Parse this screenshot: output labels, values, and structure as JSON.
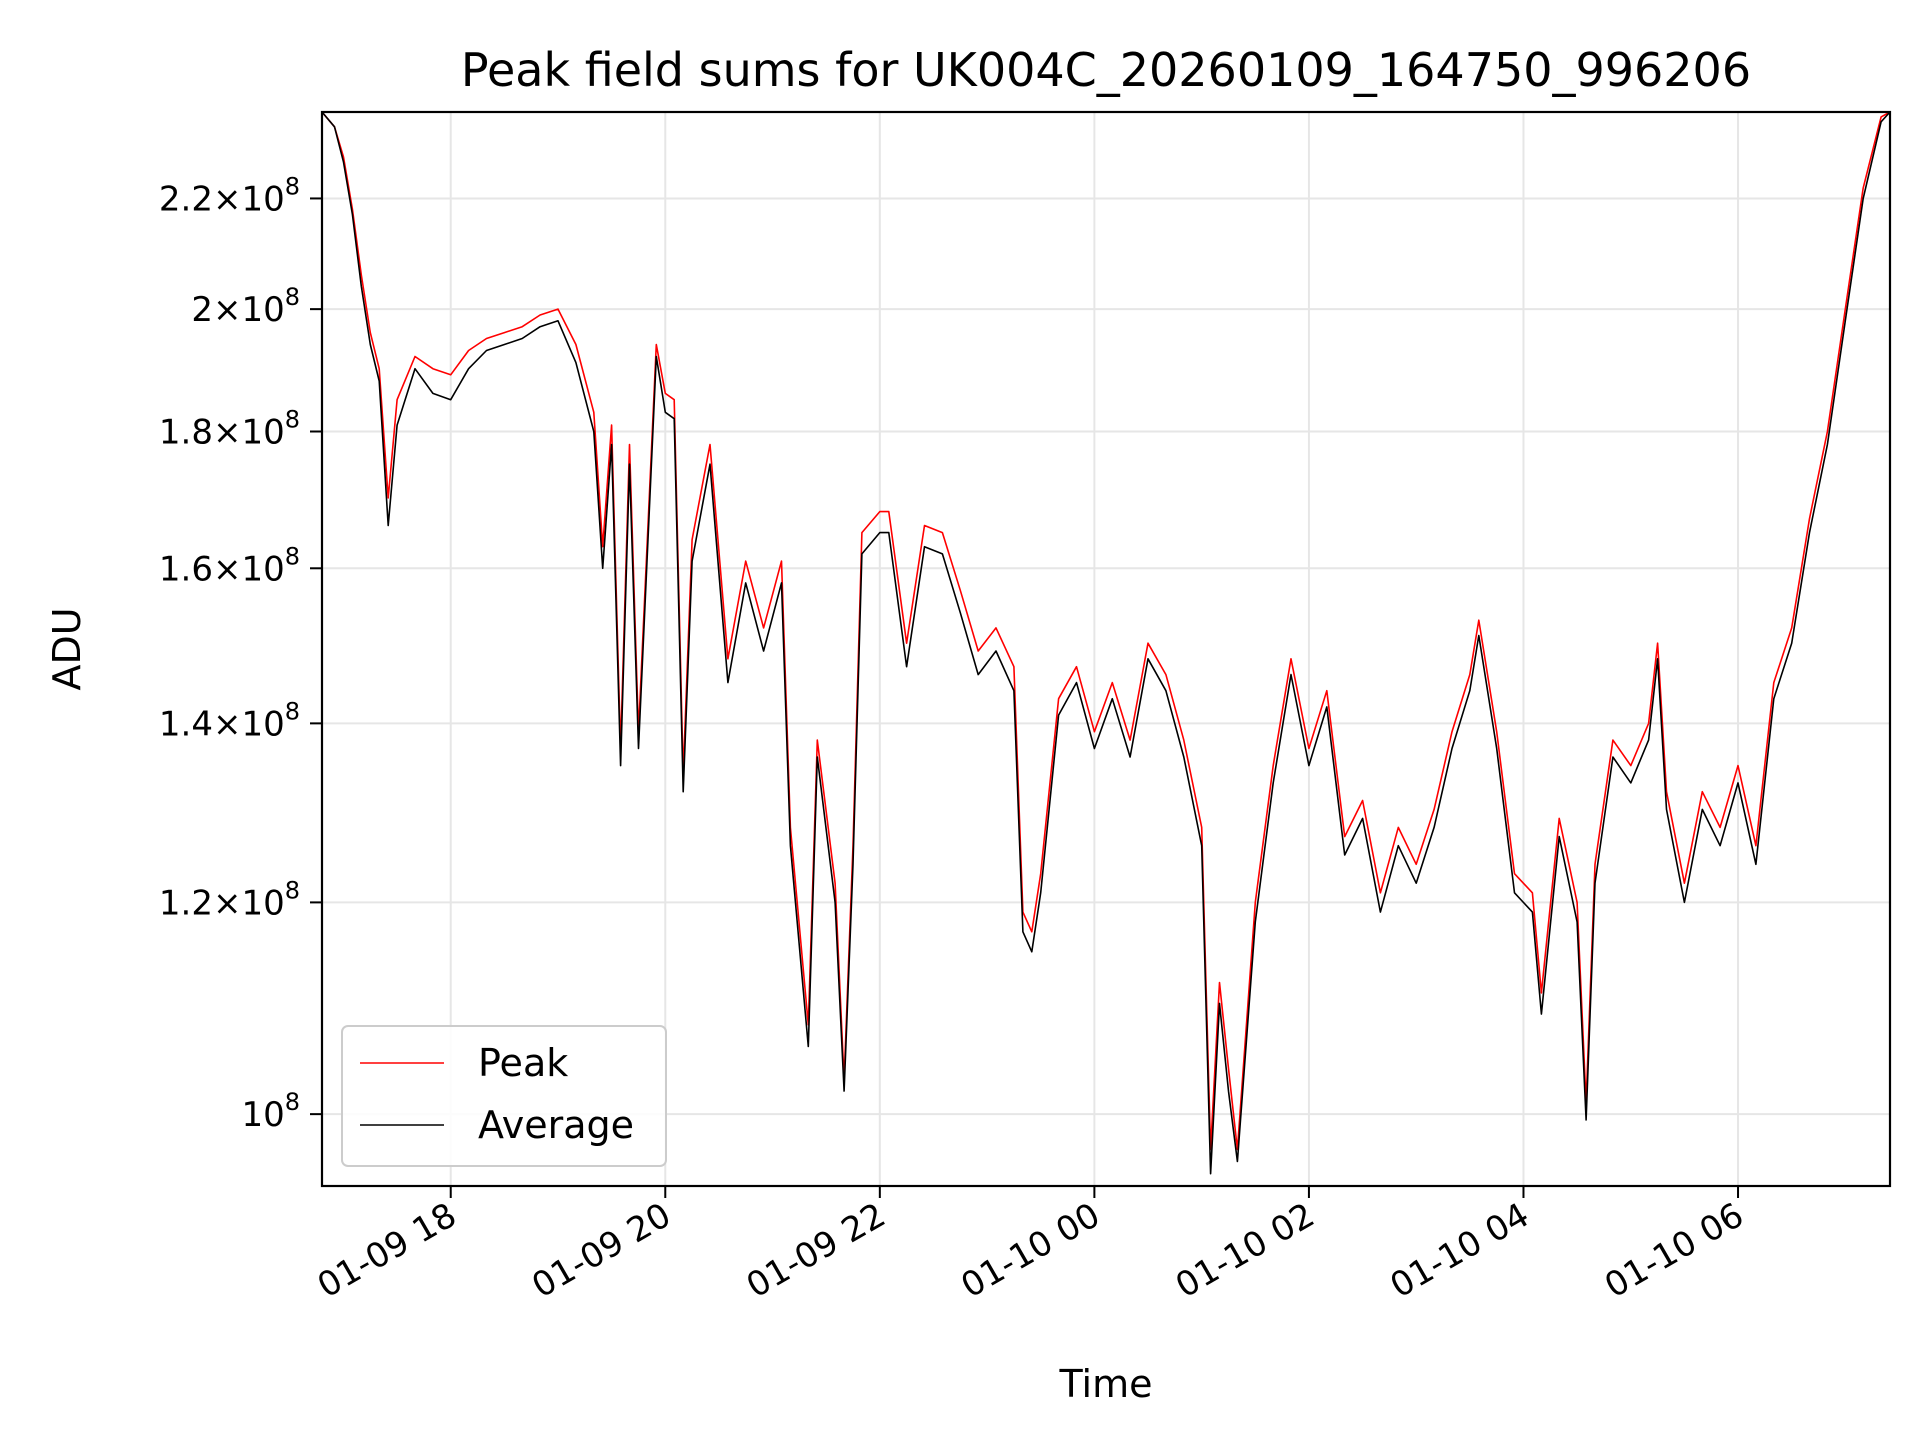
{
  "chart_data": {
    "type": "line",
    "title": "Peak field sums for UK004C_20260109_164750_996206",
    "xlabel": "Time",
    "ylabel": "ADU",
    "yscale": "log",
    "grid": true,
    "legend_position": "lower-left",
    "xlim": [
      "2026-01-09 16:48",
      "2026-01-10 07:25"
    ],
    "ylim": [
      94000000,
      237000000
    ],
    "x_ticks": [
      {
        "value": "2026-01-09 18:00",
        "label": "01-09 18"
      },
      {
        "value": "2026-01-09 20:00",
        "label": "01-09 20"
      },
      {
        "value": "2026-01-09 22:00",
        "label": "01-09 22"
      },
      {
        "value": "2026-01-10 00:00",
        "label": "01-10 00"
      },
      {
        "value": "2026-01-10 02:00",
        "label": "01-10 02"
      },
      {
        "value": "2026-01-10 04:00",
        "label": "01-10 04"
      },
      {
        "value": "2026-01-10 06:00",
        "label": "01-10 06"
      }
    ],
    "y_ticks": [
      {
        "value": 100000000,
        "mantissa": "",
        "exponent": "8"
      },
      {
        "value": 120000000,
        "mantissa": "1.2",
        "exponent": "8"
      },
      {
        "value": 140000000,
        "mantissa": "1.4",
        "exponent": "8"
      },
      {
        "value": 160000000,
        "mantissa": "1.6",
        "exponent": "8"
      },
      {
        "value": 180000000,
        "mantissa": "1.8",
        "exponent": "8"
      },
      {
        "value": 200000000,
        "mantissa": "2",
        "exponent": "8"
      },
      {
        "value": 220000000,
        "mantissa": "2.2",
        "exponent": "8"
      }
    ],
    "series": [
      {
        "name": "Peak",
        "color": "#ff0000",
        "points": [
          [
            "2026-01-09 16:48",
            237000000
          ],
          [
            "2026-01-09 16:55",
            234000000
          ],
          [
            "2026-01-09 17:00",
            228000000
          ],
          [
            "2026-01-09 17:05",
            218000000
          ],
          [
            "2026-01-09 17:10",
            206000000
          ],
          [
            "2026-01-09 17:15",
            196000000
          ],
          [
            "2026-01-09 17:20",
            190000000
          ],
          [
            "2026-01-09 17:25",
            170000000
          ],
          [
            "2026-01-09 17:30",
            185000000
          ],
          [
            "2026-01-09 17:40",
            192000000
          ],
          [
            "2026-01-09 17:50",
            190000000
          ],
          [
            "2026-01-09 18:00",
            189000000
          ],
          [
            "2026-01-09 18:10",
            193000000
          ],
          [
            "2026-01-09 18:20",
            195000000
          ],
          [
            "2026-01-09 18:30",
            196000000
          ],
          [
            "2026-01-09 18:40",
            197000000
          ],
          [
            "2026-01-09 18:50",
            199000000
          ],
          [
            "2026-01-09 19:00",
            200000000
          ],
          [
            "2026-01-09 19:10",
            194000000
          ],
          [
            "2026-01-09 19:20",
            183000000
          ],
          [
            "2026-01-09 19:25",
            163000000
          ],
          [
            "2026-01-09 19:30",
            181000000
          ],
          [
            "2026-01-09 19:35",
            137000000
          ],
          [
            "2026-01-09 19:40",
            178000000
          ],
          [
            "2026-01-09 19:45",
            139000000
          ],
          [
            "2026-01-09 19:55",
            194000000
          ],
          [
            "2026-01-09 20:00",
            186000000
          ],
          [
            "2026-01-09 20:05",
            185000000
          ],
          [
            "2026-01-09 20:10",
            134000000
          ],
          [
            "2026-01-09 20:15",
            164000000
          ],
          [
            "2026-01-09 20:25",
            178000000
          ],
          [
            "2026-01-09 20:35",
            148000000
          ],
          [
            "2026-01-09 20:45",
            161000000
          ],
          [
            "2026-01-09 20:55",
            152000000
          ],
          [
            "2026-01-09 21:05",
            161000000
          ],
          [
            "2026-01-09 21:10",
            128000000
          ],
          [
            "2026-01-09 21:20",
            108000000
          ],
          [
            "2026-01-09 21:25",
            138000000
          ],
          [
            "2026-01-09 21:35",
            122000000
          ],
          [
            "2026-01-09 21:40",
            103000000
          ],
          [
            "2026-01-09 21:45",
            126000000
          ],
          [
            "2026-01-09 21:50",
            165000000
          ],
          [
            "2026-01-09 22:00",
            168000000
          ],
          [
            "2026-01-09 22:05",
            168000000
          ],
          [
            "2026-01-09 22:15",
            150000000
          ],
          [
            "2026-01-09 22:25",
            166000000
          ],
          [
            "2026-01-09 22:35",
            165000000
          ],
          [
            "2026-01-09 22:45",
            157000000
          ],
          [
            "2026-01-09 22:55",
            149000000
          ],
          [
            "2026-01-09 23:05",
            152000000
          ],
          [
            "2026-01-09 23:15",
            147000000
          ],
          [
            "2026-01-09 23:20",
            119000000
          ],
          [
            "2026-01-09 23:25",
            117000000
          ],
          [
            "2026-01-09 23:30",
            123000000
          ],
          [
            "2026-01-09 23:40",
            143000000
          ],
          [
            "2026-01-09 23:50",
            147000000
          ],
          [
            "2026-01-10 00:00",
            139000000
          ],
          [
            "2026-01-10 00:10",
            145000000
          ],
          [
            "2026-01-10 00:20",
            138000000
          ],
          [
            "2026-01-10 00:30",
            150000000
          ],
          [
            "2026-01-10 00:40",
            146000000
          ],
          [
            "2026-01-10 00:50",
            138000000
          ],
          [
            "2026-01-10 01:00",
            128000000
          ],
          [
            "2026-01-10 01:05",
            97000000
          ],
          [
            "2026-01-10 01:10",
            112000000
          ],
          [
            "2026-01-10 01:15",
            104000000
          ],
          [
            "2026-01-10 01:20",
            97000000
          ],
          [
            "2026-01-10 01:30",
            120000000
          ],
          [
            "2026-01-10 01:40",
            135000000
          ],
          [
            "2026-01-10 01:50",
            148000000
          ],
          [
            "2026-01-10 02:00",
            137000000
          ],
          [
            "2026-01-10 02:10",
            144000000
          ],
          [
            "2026-01-10 02:20",
            127000000
          ],
          [
            "2026-01-10 02:30",
            131000000
          ],
          [
            "2026-01-10 02:40",
            121000000
          ],
          [
            "2026-01-10 02:50",
            128000000
          ],
          [
            "2026-01-10 03:00",
            124000000
          ],
          [
            "2026-01-10 03:10",
            130000000
          ],
          [
            "2026-01-10 03:20",
            139000000
          ],
          [
            "2026-01-10 03:30",
            146000000
          ],
          [
            "2026-01-10 03:35",
            153000000
          ],
          [
            "2026-01-10 03:45",
            139000000
          ],
          [
            "2026-01-10 03:55",
            123000000
          ],
          [
            "2026-01-10 04:05",
            121000000
          ],
          [
            "2026-01-10 04:10",
            111000000
          ],
          [
            "2026-01-10 04:20",
            129000000
          ],
          [
            "2026-01-10 04:30",
            120000000
          ],
          [
            "2026-01-10 04:35",
            101000000
          ],
          [
            "2026-01-10 04:40",
            124000000
          ],
          [
            "2026-01-10 04:50",
            138000000
          ],
          [
            "2026-01-10 05:00",
            135000000
          ],
          [
            "2026-01-10 05:10",
            140000000
          ],
          [
            "2026-01-10 05:15",
            150000000
          ],
          [
            "2026-01-10 05:20",
            132000000
          ],
          [
            "2026-01-10 05:30",
            122000000
          ],
          [
            "2026-01-10 05:40",
            132000000
          ],
          [
            "2026-01-10 05:50",
            128000000
          ],
          [
            "2026-01-10 06:00",
            135000000
          ],
          [
            "2026-01-10 06:10",
            126000000
          ],
          [
            "2026-01-10 06:20",
            145000000
          ],
          [
            "2026-01-10 06:30",
            152000000
          ],
          [
            "2026-01-10 06:40",
            167000000
          ],
          [
            "2026-01-10 06:50",
            180000000
          ],
          [
            "2026-01-10 07:00",
            200000000
          ],
          [
            "2026-01-10 07:10",
            222000000
          ],
          [
            "2026-01-10 07:20",
            236000000
          ],
          [
            "2026-01-10 07:25",
            237000000
          ]
        ]
      },
      {
        "name": "Average",
        "color": "#000000",
        "points": [
          [
            "2026-01-09 16:48",
            237000000
          ],
          [
            "2026-01-09 16:55",
            234000000
          ],
          [
            "2026-01-09 17:00",
            227000000
          ],
          [
            "2026-01-09 17:05",
            217000000
          ],
          [
            "2026-01-09 17:10",
            204000000
          ],
          [
            "2026-01-09 17:15",
            194000000
          ],
          [
            "2026-01-09 17:20",
            188000000
          ],
          [
            "2026-01-09 17:25",
            166000000
          ],
          [
            "2026-01-09 17:30",
            181000000
          ],
          [
            "2026-01-09 17:40",
            190000000
          ],
          [
            "2026-01-09 17:50",
            186000000
          ],
          [
            "2026-01-09 18:00",
            185000000
          ],
          [
            "2026-01-09 18:10",
            190000000
          ],
          [
            "2026-01-09 18:20",
            193000000
          ],
          [
            "2026-01-09 18:30",
            194000000
          ],
          [
            "2026-01-09 18:40",
            195000000
          ],
          [
            "2026-01-09 18:50",
            197000000
          ],
          [
            "2026-01-09 19:00",
            198000000
          ],
          [
            "2026-01-09 19:10",
            191000000
          ],
          [
            "2026-01-09 19:20",
            180000000
          ],
          [
            "2026-01-09 19:25",
            160000000
          ],
          [
            "2026-01-09 19:30",
            178000000
          ],
          [
            "2026-01-09 19:35",
            135000000
          ],
          [
            "2026-01-09 19:40",
            175000000
          ],
          [
            "2026-01-09 19:45",
            137000000
          ],
          [
            "2026-01-09 19:55",
            192000000
          ],
          [
            "2026-01-09 20:00",
            183000000
          ],
          [
            "2026-01-09 20:05",
            182000000
          ],
          [
            "2026-01-09 20:10",
            132000000
          ],
          [
            "2026-01-09 20:15",
            161000000
          ],
          [
            "2026-01-09 20:25",
            175000000
          ],
          [
            "2026-01-09 20:35",
            145000000
          ],
          [
            "2026-01-09 20:45",
            158000000
          ],
          [
            "2026-01-09 20:55",
            149000000
          ],
          [
            "2026-01-09 21:05",
            158000000
          ],
          [
            "2026-01-09 21:10",
            126000000
          ],
          [
            "2026-01-09 21:20",
            106000000
          ],
          [
            "2026-01-09 21:25",
            136000000
          ],
          [
            "2026-01-09 21:35",
            120000000
          ],
          [
            "2026-01-09 21:40",
            102000000
          ],
          [
            "2026-01-09 21:45",
            124000000
          ],
          [
            "2026-01-09 21:50",
            162000000
          ],
          [
            "2026-01-09 22:00",
            165000000
          ],
          [
            "2026-01-09 22:05",
            165000000
          ],
          [
            "2026-01-09 22:15",
            147000000
          ],
          [
            "2026-01-09 22:25",
            163000000
          ],
          [
            "2026-01-09 22:35",
            162000000
          ],
          [
            "2026-01-09 22:45",
            154000000
          ],
          [
            "2026-01-09 22:55",
            146000000
          ],
          [
            "2026-01-09 23:05",
            149000000
          ],
          [
            "2026-01-09 23:15",
            144000000
          ],
          [
            "2026-01-09 23:20",
            117000000
          ],
          [
            "2026-01-09 23:25",
            115000000
          ],
          [
            "2026-01-09 23:30",
            121000000
          ],
          [
            "2026-01-09 23:40",
            141000000
          ],
          [
            "2026-01-09 23:50",
            145000000
          ],
          [
            "2026-01-10 00:00",
            137000000
          ],
          [
            "2026-01-10 00:10",
            143000000
          ],
          [
            "2026-01-10 00:20",
            136000000
          ],
          [
            "2026-01-10 00:30",
            148000000
          ],
          [
            "2026-01-10 00:40",
            144000000
          ],
          [
            "2026-01-10 00:50",
            136000000
          ],
          [
            "2026-01-10 01:00",
            126000000
          ],
          [
            "2026-01-10 01:05",
            95000000
          ],
          [
            "2026-01-10 01:10",
            110000000
          ],
          [
            "2026-01-10 01:15",
            102000000
          ],
          [
            "2026-01-10 01:20",
            96000000
          ],
          [
            "2026-01-10 01:30",
            118000000
          ],
          [
            "2026-01-10 01:40",
            133000000
          ],
          [
            "2026-01-10 01:50",
            146000000
          ],
          [
            "2026-01-10 02:00",
            135000000
          ],
          [
            "2026-01-10 02:10",
            142000000
          ],
          [
            "2026-01-10 02:20",
            125000000
          ],
          [
            "2026-01-10 02:30",
            129000000
          ],
          [
            "2026-01-10 02:40",
            119000000
          ],
          [
            "2026-01-10 02:50",
            126000000
          ],
          [
            "2026-01-10 03:00",
            122000000
          ],
          [
            "2026-01-10 03:10",
            128000000
          ],
          [
            "2026-01-10 03:20",
            137000000
          ],
          [
            "2026-01-10 03:30",
            144000000
          ],
          [
            "2026-01-10 03:35",
            151000000
          ],
          [
            "2026-01-10 03:45",
            137000000
          ],
          [
            "2026-01-10 03:55",
            121000000
          ],
          [
            "2026-01-10 04:05",
            119000000
          ],
          [
            "2026-01-10 04:10",
            109000000
          ],
          [
            "2026-01-10 04:20",
            127000000
          ],
          [
            "2026-01-10 04:30",
            118000000
          ],
          [
            "2026-01-10 04:35",
            99500000
          ],
          [
            "2026-01-10 04:40",
            122000000
          ],
          [
            "2026-01-10 04:50",
            136000000
          ],
          [
            "2026-01-10 05:00",
            133000000
          ],
          [
            "2026-01-10 05:10",
            138000000
          ],
          [
            "2026-01-10 05:15",
            148000000
          ],
          [
            "2026-01-10 05:20",
            130000000
          ],
          [
            "2026-01-10 05:30",
            120000000
          ],
          [
            "2026-01-10 05:40",
            130000000
          ],
          [
            "2026-01-10 05:50",
            126000000
          ],
          [
            "2026-01-10 06:00",
            133000000
          ],
          [
            "2026-01-10 06:10",
            124000000
          ],
          [
            "2026-01-10 06:20",
            143000000
          ],
          [
            "2026-01-10 06:30",
            150000000
          ],
          [
            "2026-01-10 06:40",
            165000000
          ],
          [
            "2026-01-10 06:50",
            178000000
          ],
          [
            "2026-01-10 07:00",
            198000000
          ],
          [
            "2026-01-10 07:10",
            220000000
          ],
          [
            "2026-01-10 07:20",
            235000000
          ],
          [
            "2026-01-10 07:25",
            237000000
          ]
        ]
      }
    ]
  }
}
